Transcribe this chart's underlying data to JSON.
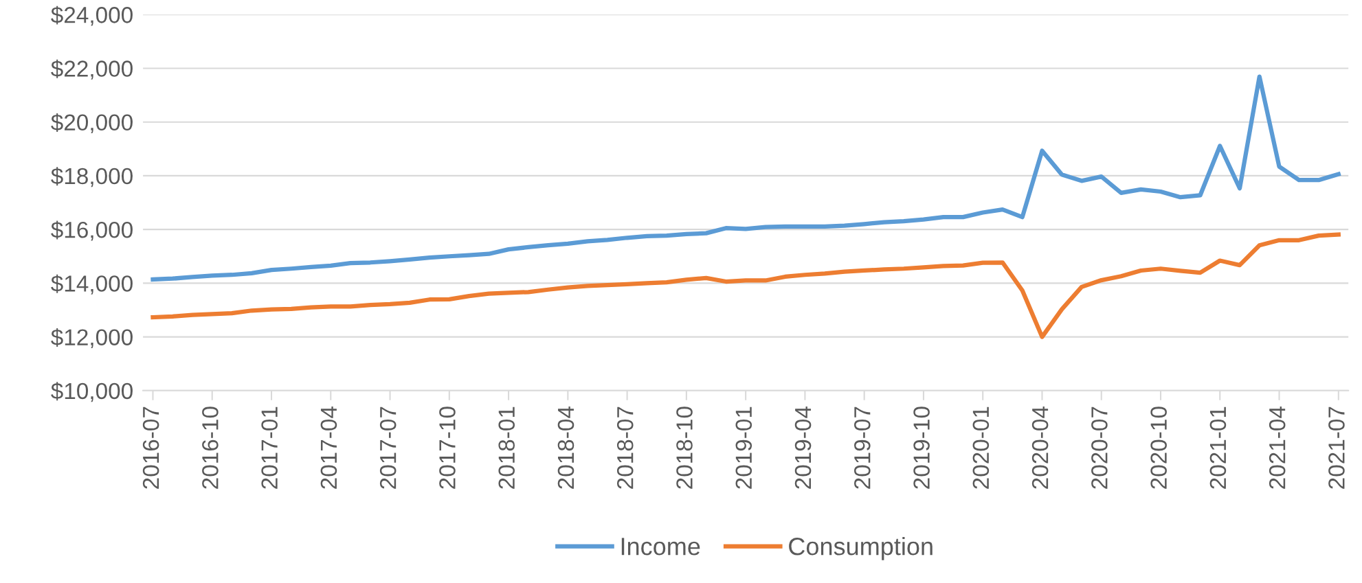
{
  "chart_data": {
    "type": "line",
    "categories": [
      "2016-07",
      null,
      null,
      "2016-10",
      null,
      null,
      "2017-01",
      null,
      null,
      "2017-04",
      null,
      null,
      "2017-07",
      null,
      null,
      "2017-10",
      null,
      null,
      "2018-01",
      null,
      null,
      "2018-04",
      null,
      null,
      "2018-07",
      null,
      null,
      "2018-10",
      null,
      null,
      "2019-01",
      null,
      null,
      "2019-04",
      null,
      null,
      "2019-07",
      null,
      null,
      "2019-10",
      null,
      null,
      "2020-01",
      null,
      null,
      "2020-04",
      null,
      null,
      "2020-07",
      null,
      null,
      "2020-10",
      null,
      null,
      "2021-01",
      null,
      null,
      "2021-04",
      null,
      null,
      "2021-07"
    ],
    "series": [
      {
        "name": "Income",
        "color": "#5b9bd5",
        "values": [
          14140,
          14170,
          14230,
          14280,
          14310,
          14370,
          14490,
          14540,
          14600,
          14650,
          14750,
          14770,
          14820,
          14880,
          14950,
          15000,
          15040,
          15090,
          15260,
          15340,
          15410,
          15470,
          15560,
          15610,
          15690,
          15750,
          15770,
          15830,
          15860,
          16050,
          16020,
          16090,
          16110,
          16110,
          16110,
          16140,
          16200,
          16270,
          16310,
          16370,
          16460,
          16460,
          16630,
          16740,
          16460,
          18930,
          18040,
          17810,
          17970,
          17360,
          17490,
          17410,
          17200,
          17270,
          19110,
          17530,
          21690,
          18340,
          17840,
          17840,
          18060
        ]
      },
      {
        "name": "Consumption",
        "color": "#ed7d31",
        "values": [
          12730,
          12760,
          12820,
          12850,
          12880,
          12980,
          13020,
          13040,
          13100,
          13130,
          13130,
          13190,
          13220,
          13270,
          13390,
          13400,
          13520,
          13610,
          13640,
          13670,
          13760,
          13840,
          13900,
          13930,
          13960,
          14000,
          14030,
          14130,
          14190,
          14060,
          14100,
          14100,
          14240,
          14310,
          14360,
          14430,
          14470,
          14510,
          14540,
          14590,
          14640,
          14660,
          14760,
          14770,
          13730,
          12000,
          13030,
          13860,
          14110,
          14260,
          14470,
          14540,
          14460,
          14390,
          14840,
          14670,
          15410,
          15600,
          15600,
          15770,
          15810
        ]
      }
    ],
    "ylim": [
      10000,
      24000
    ],
    "yticks": [
      {
        "value": 10000,
        "label": "$10,000"
      },
      {
        "value": 12000,
        "label": "$12,000"
      },
      {
        "value": 14000,
        "label": "$14,000"
      },
      {
        "value": 16000,
        "label": "$16,000"
      },
      {
        "value": 18000,
        "label": "$18,000"
      },
      {
        "value": 20000,
        "label": "$20,000"
      },
      {
        "value": 22000,
        "label": "$22,000"
      },
      {
        "value": 24000,
        "label": "$24,000"
      }
    ],
    "grid": "y",
    "legend": "bottom",
    "marker": "none",
    "line_style": "solid"
  }
}
